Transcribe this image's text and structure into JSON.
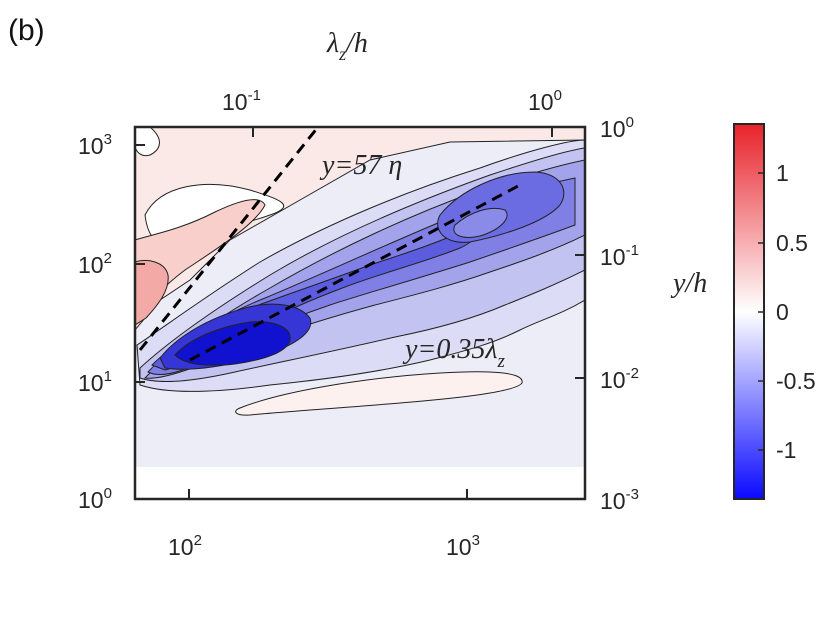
{
  "panel_label": "(b)",
  "colors": {
    "neg": "#0a0aff",
    "pos": "#e8232b",
    "zero": "#ffffff",
    "axis": "#262626"
  },
  "chart_data": {
    "type": "heatmap",
    "title": "",
    "panel": "(b)",
    "x_bottom": {
      "label": "",
      "scale": "log",
      "range": [
        63,
        2400
      ],
      "ticks": [
        "10^2",
        "10^3"
      ]
    },
    "x_top": {
      "label": "λ_z/h",
      "scale": "log",
      "range": [
        0.0265,
        1.0
      ],
      "ticks": [
        "10^-1",
        "10^0"
      ]
    },
    "y_left": {
      "label": "",
      "scale": "log",
      "range": [
        1,
        1700
      ],
      "ticks": [
        "10^0",
        "10^1",
        "10^2",
        "10^3"
      ]
    },
    "y_right": {
      "label": "y/h",
      "scale": "log",
      "range": [
        0.001,
        1.0
      ],
      "ticks": [
        "10^-3",
        "10^-2",
        "10^-1",
        "10^0"
      ]
    },
    "colorbar": {
      "range": [
        -1.35,
        1.35
      ],
      "ticks": [
        1,
        0.5,
        0,
        -0.5,
        -1
      ],
      "tick_labels": [
        "1",
        "0.5",
        "0",
        "-0.5",
        "-1"
      ]
    },
    "annotations": [
      {
        "text": "y=57 η",
        "math": "y=57",
        "math_sym": "η"
      },
      {
        "text": "y=0.35λ_z",
        "math": "y=0.35λ",
        "math_sub": "z"
      }
    ],
    "reference_lines": [
      {
        "name": "y=57 η",
        "style": "dashed",
        "points": [
          [
            68,
            18
          ],
          [
            300,
            1700
          ]
        ]
      },
      {
        "name": "y=0.35λ_z",
        "style": "dashed",
        "points": [
          [
            100,
            15
          ],
          [
            1600,
            520
          ]
        ]
      }
    ],
    "features": [
      {
        "sign": "negative",
        "peak_value": -1.2,
        "center": [
          145,
          19
        ]
      },
      {
        "sign": "negative",
        "peak_value": -0.85,
        "center": [
          1200,
          320
        ]
      },
      {
        "sign": "positive",
        "peak_value": 0.5,
        "center": [
          63,
          50
        ]
      },
      {
        "sign": "positive",
        "peak_value": 0.15,
        "center": [
          130,
          1000
        ]
      }
    ],
    "no_data_below_y": 2
  }
}
